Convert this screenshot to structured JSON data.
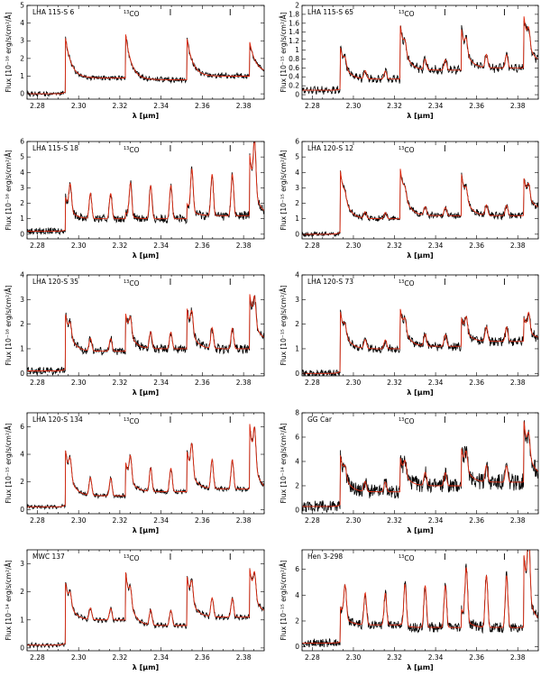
{
  "chart_data": [
    {
      "type": "line",
      "title": "LHA 115-S 6",
      "annotation": "13CO",
      "ylabel": "Flux [10⁻¹⁶ erg/s/cm²/Å]",
      "xlabel": "λ [μm]",
      "xlim": [
        2.275,
        2.39
      ],
      "ylim": [
        -0.3,
        5
      ],
      "yticks": [
        0,
        1,
        2,
        3,
        4,
        5
      ],
      "xticks": [
        2.28,
        2.3,
        2.32,
        2.34,
        2.36,
        2.38
      ],
      "xticklabels": [
        "2.28",
        "2.30",
        "2.32",
        "2.34",
        "2.36",
        "2.38"
      ],
      "markers": [
        2.3445,
        2.3735
      ],
      "bandheads": [
        2.2935,
        2.3227,
        2.3525,
        2.3829
      ],
      "peaks": [
        3.3,
        3.5,
        3.2,
        3.0
      ],
      "continuum": [
        0.0,
        0.9,
        0.8,
        1.0,
        1.2
      ],
      "fine": 0.0,
      "noise": 0.1
    },
    {
      "type": "line",
      "title": "LHA 115-S 65",
      "annotation": "13CO",
      "ylabel": "Flux [10⁻¹⁵ erg/s/cm²/Å]",
      "xlabel": "λ [μm]",
      "xlim": [
        2.275,
        2.39
      ],
      "ylim": [
        -0.1,
        2.0
      ],
      "yticks": [
        0,
        0.2,
        0.4,
        0.6,
        0.8,
        1.0,
        1.2,
        1.4,
        1.6,
        1.8,
        2.0
      ],
      "xticks": [
        2.28,
        2.3,
        2.32,
        2.34,
        2.36,
        2.38
      ],
      "xticklabels": [
        "2.28",
        "2.30",
        "2.32",
        "2.34",
        "2.36",
        "2.38"
      ],
      "markers": [
        2.3445,
        2.3735
      ],
      "bandheads": [
        2.2935,
        2.3227,
        2.3525,
        2.3829
      ],
      "peaks": [
        1.1,
        1.6,
        1.5,
        1.8
      ],
      "continuum": [
        0.1,
        0.35,
        0.55,
        0.6,
        0.7
      ],
      "fine": 0.35,
      "noise": 0.05
    },
    {
      "type": "line",
      "title": "LHA 115-S 18",
      "annotation": "13CO",
      "ylabel": "Flux [10⁻¹⁶ erg/s/cm²/Å]",
      "xlabel": "λ [μm]",
      "xlim": [
        2.275,
        2.39
      ],
      "ylim": [
        -0.3,
        6
      ],
      "yticks": [
        0,
        1,
        2,
        3,
        4,
        5,
        6
      ],
      "xticks": [
        2.28,
        2.3,
        2.32,
        2.34,
        2.36,
        2.38
      ],
      "xticklabels": [
        "2.28",
        "2.30",
        "2.32",
        "2.34",
        "2.36",
        "2.38"
      ],
      "markers": [
        2.3445,
        2.3735
      ],
      "bandheads": [
        2.2935,
        2.3227,
        2.3525,
        2.3829
      ],
      "peaks": [
        2.5,
        1.4,
        2.0,
        5.3
      ],
      "continuum": [
        0.2,
        1.0,
        1.0,
        1.2,
        1.2
      ],
      "fine": 3.2,
      "noise": 0.2
    },
    {
      "type": "line",
      "title": "LHA 120-S 12",
      "annotation": "13CO",
      "ylabel": "Flux [10⁻¹⁵ erg/s/cm²/Å]",
      "xlabel": "λ [μm]",
      "xlim": [
        2.275,
        2.39
      ],
      "ylim": [
        -0.3,
        6
      ],
      "yticks": [
        0,
        1,
        2,
        3,
        4,
        5,
        6
      ],
      "xticks": [
        2.28,
        2.3,
        2.32,
        2.34,
        2.36,
        2.38
      ],
      "xticklabels": [
        "2.28",
        "2.30",
        "2.32",
        "2.34",
        "2.36",
        "2.38"
      ],
      "markers": [
        2.3445,
        2.3735
      ],
      "bandheads": [
        2.2935,
        2.3227,
        2.3525,
        2.3829
      ],
      "peaks": [
        4.3,
        4.4,
        4.0,
        3.7
      ],
      "continuum": [
        0.0,
        1.0,
        1.2,
        1.2,
        1.6
      ],
      "fine": 0.8,
      "noise": 0.15
    },
    {
      "type": "line",
      "title": "LHA 120-S 35",
      "annotation": "13CO",
      "ylabel": "Flux [10⁻¹⁶ erg/s/cm²/Å]",
      "xlabel": "λ [μm]",
      "xlim": [
        2.275,
        2.39
      ],
      "ylim": [
        -0.1,
        4
      ],
      "yticks": [
        0,
        1,
        2,
        3,
        4
      ],
      "xticks": [
        2.28,
        2.3,
        2.32,
        2.34,
        2.36,
        2.38
      ],
      "xticklabels": [
        "2.28",
        "2.30",
        "2.32",
        "2.34",
        "2.36",
        "2.38"
      ],
      "markers": [
        2.3445,
        2.3735
      ],
      "bandheads": [
        2.2935,
        2.3227,
        2.3525,
        2.3829
      ],
      "peaks": [
        2.5,
        2.5,
        2.7,
        3.3
      ],
      "continuum": [
        0.1,
        0.9,
        1.0,
        1.0,
        1.3
      ],
      "fine": 1.0,
      "noise": 0.12
    },
    {
      "type": "line",
      "title": "LHA 120-S 73",
      "annotation": "13CO",
      "ylabel": "Flux [10⁻¹⁵ erg/s/cm²/Å]",
      "xlabel": "λ [μm]",
      "xlim": [
        2.275,
        2.39
      ],
      "ylim": [
        -0.1,
        4
      ],
      "yticks": [
        0,
        1,
        2,
        3,
        4
      ],
      "xticks": [
        2.28,
        2.3,
        2.32,
        2.34,
        2.36,
        2.38
      ],
      "xticklabels": [
        "2.28",
        "2.30",
        "2.32",
        "2.34",
        "2.36",
        "2.38"
      ],
      "markers": [
        2.3445,
        2.3735
      ],
      "bandheads": [
        2.2935,
        2.3227,
        2.3525,
        2.3829
      ],
      "peaks": [
        2.6,
        2.7,
        2.3,
        2.3
      ],
      "continuum": [
        0.0,
        1.0,
        1.1,
        1.3,
        1.4
      ],
      "fine": 0.7,
      "noise": 0.12
    },
    {
      "type": "line",
      "title": "LHA 120-S 134",
      "annotation": "13CO",
      "ylabel": "Flux [10⁻¹⁵ erg/s/cm²/Å]",
      "xlabel": "λ [μm]",
      "xlim": [
        2.275,
        2.39
      ],
      "ylim": [
        -0.3,
        7
      ],
      "yticks": [
        0,
        2,
        4,
        6
      ],
      "xticks": [
        2.28,
        2.3,
        2.32,
        2.34,
        2.36,
        2.38
      ],
      "xticklabels": [
        "2.28",
        "2.30",
        "2.32",
        "2.34",
        "2.36",
        "2.38"
      ],
      "markers": [
        2.3445,
        2.3735
      ],
      "bandheads": [
        2.2935,
        2.3227,
        2.3525,
        2.3829
      ],
      "peaks": [
        4.5,
        3.5,
        4.3,
        6.4
      ],
      "continuum": [
        0.2,
        1.0,
        1.3,
        1.5,
        1.3
      ],
      "fine": 2.5,
      "noise": 0.12
    },
    {
      "type": "line",
      "title": "GG Car",
      "annotation": "13CO",
      "ylabel": "Flux [10⁻¹⁴ erg/s/cm²/Å]",
      "xlabel": "λ [μm]",
      "xlim": [
        2.275,
        2.39
      ],
      "ylim": [
        -0.3,
        8
      ],
      "yticks": [
        0,
        2,
        4,
        6,
        8
      ],
      "xticks": [
        2.28,
        2.3,
        2.32,
        2.34,
        2.36,
        2.38
      ],
      "xticklabels": [
        "2.28",
        "2.30",
        "2.32",
        "2.34",
        "2.36",
        "2.38"
      ],
      "markers": [
        2.3445,
        2.3735
      ],
      "bandheads": [
        2.2935,
        2.3227,
        2.3525,
        2.3829
      ],
      "peaks": [
        4.7,
        4.4,
        5.2,
        7.5
      ],
      "continuum": [
        0.3,
        1.5,
        2.0,
        2.3,
        2.8
      ],
      "fine": 1.6,
      "noise": 0.5
    },
    {
      "type": "line",
      "title": "MWC 137",
      "annotation": "13CO",
      "ylabel": "Flux [10⁻¹⁴ erg/s/cm²/Å]",
      "xlabel": "λ [μm]",
      "xlim": [
        2.275,
        2.39
      ],
      "ylim": [
        -0.1,
        3.5
      ],
      "yticks": [
        0,
        1,
        2,
        3
      ],
      "xticks": [
        2.28,
        2.3,
        2.32,
        2.34,
        2.36,
        2.38
      ],
      "xticklabels": [
        "2.28",
        "2.30",
        "2.32",
        "2.34",
        "2.36",
        "2.38"
      ],
      "markers": [
        2.3445,
        2.3735
      ],
      "bandheads": [
        2.2935,
        2.3227,
        2.3525,
        2.3829
      ],
      "peaks": [
        2.4,
        2.8,
        2.6,
        2.9
      ],
      "continuum": [
        0.1,
        1.0,
        0.8,
        1.1,
        1.2
      ],
      "fine": 0.8,
      "noise": 0.05
    },
    {
      "type": "line",
      "title": "Hen 3-298",
      "annotation": "13CO",
      "ylabel": "Flux [10⁻¹⁵ erg/s/cm²/Å]",
      "xlabel": "λ [μm]",
      "xlim": [
        2.275,
        2.39
      ],
      "ylim": [
        -0.3,
        7.5
      ],
      "yticks": [
        0,
        2,
        4,
        6
      ],
      "xticks": [
        2.28,
        2.3,
        2.32,
        2.34,
        2.36,
        2.38
      ],
      "xticklabels": [
        "2.28",
        "2.30",
        "2.32",
        "2.34",
        "2.36",
        "2.38"
      ],
      "markers": [
        2.3445,
        2.3735
      ],
      "bandheads": [
        2.2935,
        2.3227,
        2.3525,
        2.3829
      ],
      "peaks": [
        3.2,
        1.8,
        3.0,
        7.3
      ],
      "continuum": [
        0.3,
        1.7,
        1.5,
        1.5,
        1.8
      ],
      "fine": 4.8,
      "noise": 0.3
    }
  ]
}
